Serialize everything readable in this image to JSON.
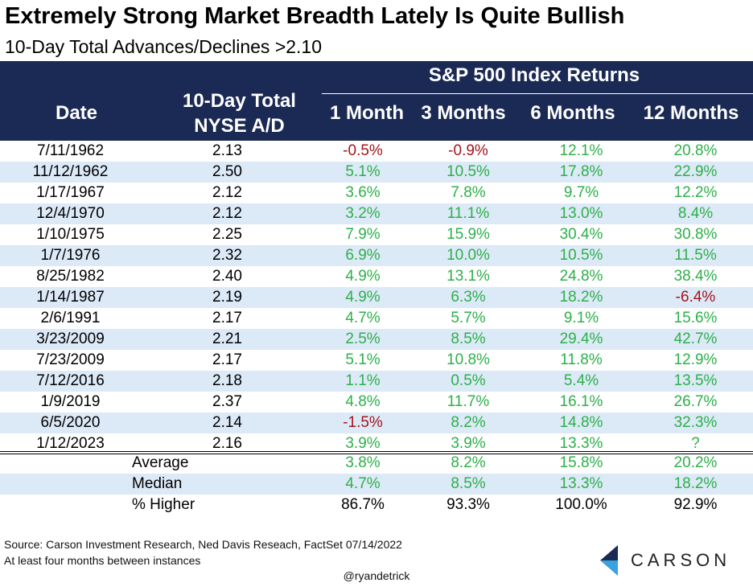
{
  "title": "Extremely Strong Market Breadth Lately Is Quite Bullish",
  "subtitle": "10-Day Total Advances/Declines >2.10",
  "header": {
    "group": "S&P 500 Index Returns",
    "date": "Date",
    "ad_line1": "10-Day Total",
    "ad_line2": "NYSE A/D",
    "m1": "1 Month",
    "m3": "3 Months",
    "m6": "6 Months",
    "m12": "12 Months"
  },
  "colors": {
    "header_bg": "#1b2a55",
    "positive": "#2db04a",
    "negative": "#a3141c",
    "stripe": "#dce9f7",
    "logo_dark": "#1b2a55",
    "logo_light": "#3aa3df"
  },
  "rows": [
    {
      "date": "7/11/1962",
      "ad": "2.13",
      "m1": "-0.5%",
      "m3": "-0.9%",
      "m6": "12.1%",
      "m12": "20.8%"
    },
    {
      "date": "11/12/1962",
      "ad": "2.50",
      "m1": "5.1%",
      "m3": "10.5%",
      "m6": "17.8%",
      "m12": "22.9%"
    },
    {
      "date": "1/17/1967",
      "ad": "2.12",
      "m1": "3.6%",
      "m3": "7.8%",
      "m6": "9.7%",
      "m12": "12.2%"
    },
    {
      "date": "12/4/1970",
      "ad": "2.12",
      "m1": "3.2%",
      "m3": "11.1%",
      "m6": "13.0%",
      "m12": "8.4%"
    },
    {
      "date": "1/10/1975",
      "ad": "2.25",
      "m1": "7.9%",
      "m3": "15.9%",
      "m6": "30.4%",
      "m12": "30.8%"
    },
    {
      "date": "1/7/1976",
      "ad": "2.32",
      "m1": "6.9%",
      "m3": "10.0%",
      "m6": "10.5%",
      "m12": "11.5%"
    },
    {
      "date": "8/25/1982",
      "ad": "2.40",
      "m1": "4.9%",
      "m3": "13.1%",
      "m6": "24.8%",
      "m12": "38.4%"
    },
    {
      "date": "1/14/1987",
      "ad": "2.19",
      "m1": "4.9%",
      "m3": "6.3%",
      "m6": "18.2%",
      "m12": "-6.4%"
    },
    {
      "date": "2/6/1991",
      "ad": "2.17",
      "m1": "4.7%",
      "m3": "5.7%",
      "m6": "9.1%",
      "m12": "15.6%"
    },
    {
      "date": "3/23/2009",
      "ad": "2.21",
      "m1": "2.5%",
      "m3": "8.5%",
      "m6": "29.4%",
      "m12": "42.7%"
    },
    {
      "date": "7/23/2009",
      "ad": "2.17",
      "m1": "5.1%",
      "m3": "10.8%",
      "m6": "11.8%",
      "m12": "12.9%"
    },
    {
      "date": "7/12/2016",
      "ad": "2.18",
      "m1": "1.1%",
      "m3": "0.5%",
      "m6": "5.4%",
      "m12": "13.5%"
    },
    {
      "date": "1/9/2019",
      "ad": "2.37",
      "m1": "4.8%",
      "m3": "11.7%",
      "m6": "16.1%",
      "m12": "26.7%"
    },
    {
      "date": "6/5/2020",
      "ad": "2.14",
      "m1": "-1.5%",
      "m3": "8.2%",
      "m6": "14.8%",
      "m12": "32.3%"
    },
    {
      "date": "1/12/2023",
      "ad": "2.16",
      "m1": "3.9%",
      "m3": "3.9%",
      "m6": "13.3%",
      "m12": "?"
    }
  ],
  "summary": [
    {
      "label": "Average",
      "m1": "3.8%",
      "m3": "8.2%",
      "m6": "15.8%",
      "m12": "20.2%"
    },
    {
      "label": "Median",
      "m1": "4.7%",
      "m3": "8.5%",
      "m6": "13.3%",
      "m12": "18.2%"
    },
    {
      "label": "% Higher",
      "m1": "86.7%",
      "m3": "93.3%",
      "m6": "100.0%",
      "m12": "92.9%"
    }
  ],
  "footer": {
    "source": "Source: Carson Investment Research, Ned Davis Reseach, FactSet 07/14/2022",
    "note": "At least four months between instances",
    "handle": "@ryandetrick",
    "logo": "CARSON"
  }
}
